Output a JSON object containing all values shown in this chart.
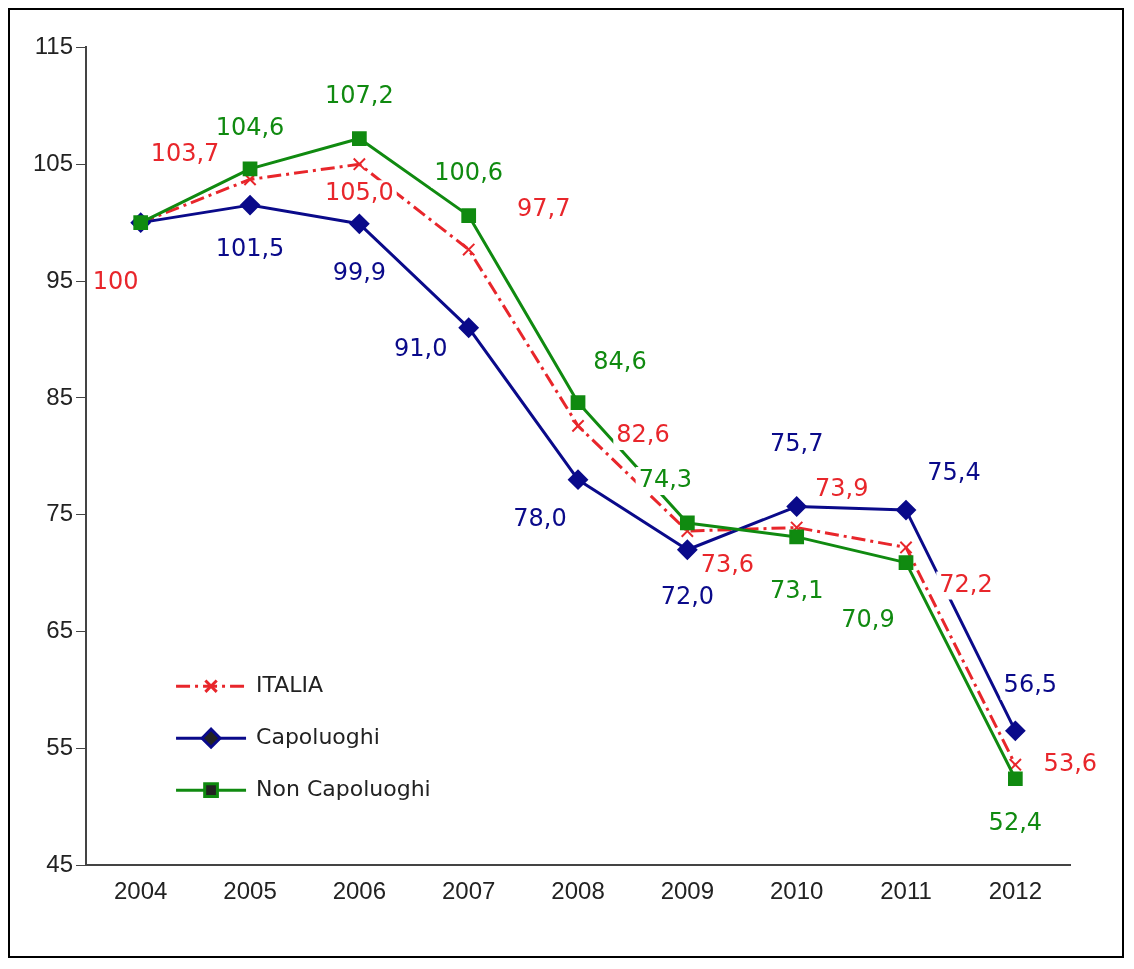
{
  "chart_data": {
    "type": "line",
    "categories": [
      "2004",
      "2005",
      "2006",
      "2007",
      "2008",
      "2009",
      "2010",
      "2011",
      "2012"
    ],
    "ylim": [
      45,
      115
    ],
    "yticks": [
      45,
      55,
      65,
      75,
      85,
      95,
      105,
      115
    ],
    "grid": false,
    "legend": "bottom left",
    "series": [
      {
        "name": "ITALIA",
        "color": "#e8262b",
        "marker": "cross",
        "line_style": "dashed",
        "values": [
          100,
          103.7,
          105.0,
          97.7,
          82.6,
          73.6,
          73.9,
          72.2,
          53.6
        ],
        "value_labels": [
          "100",
          "103,7",
          "105,0",
          "97,7",
          "82,6",
          "73,6",
          "73,9",
          "72,2",
          "53,6"
        ]
      },
      {
        "name": "Capoluoghi",
        "color": "#0a0a8a",
        "marker": "diamond",
        "line_style": "solid",
        "values": [
          100,
          101.5,
          99.9,
          91.0,
          78.0,
          72.0,
          75.7,
          75.4,
          56.5
        ],
        "value_labels": [
          null,
          "101,5",
          "99,9",
          "91,0",
          "78,0",
          "72,0",
          "75,7",
          "75,4",
          "56,5"
        ]
      },
      {
        "name": "Non Capoluoghi",
        "color": "#108a10",
        "marker": "square",
        "line_style": "solid",
        "values": [
          100,
          104.6,
          107.2,
          100.6,
          84.6,
          74.3,
          73.1,
          70.9,
          52.4
        ],
        "value_labels": [
          null,
          "104,6",
          "107,2",
          "100,6",
          "84,6",
          "74,3",
          "73,1",
          "70,9",
          "52,4"
        ]
      }
    ]
  }
}
